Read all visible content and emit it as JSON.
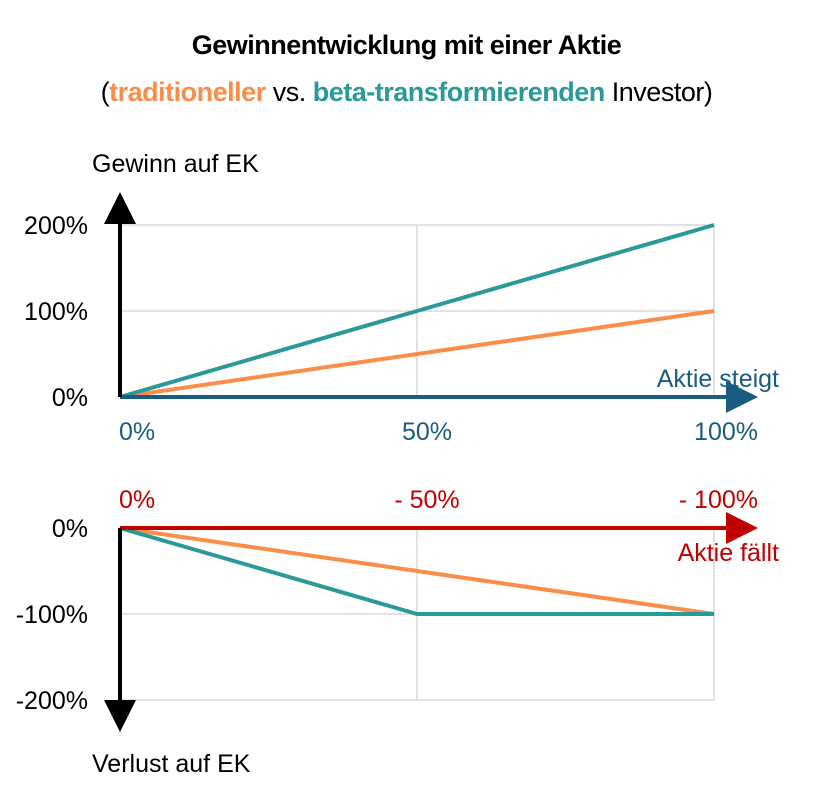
{
  "title": "Gewinnentwicklung mit einer Aktie",
  "subtitle": {
    "open": "(",
    "traditional": "traditioneller",
    "vs": " vs. ",
    "beta": "beta-transformierenden",
    "rest": " Investor)"
  },
  "colors": {
    "traditional": "#f98e4a",
    "beta": "#2a9a98",
    "rise_axis": "#1a5c80",
    "fall_axis": "#c00000",
    "grid": "#d9d9d9"
  },
  "chart_data": [
    {
      "type": "line",
      "title": "Aktie steigt",
      "ylabel": "Gewinn auf EK",
      "xlabel": "Aktie steigt",
      "x_ticks": [
        "0%",
        "50%",
        "100%"
      ],
      "y_ticks": [
        "0%",
        "100%",
        "200%"
      ],
      "xlim": [
        0,
        100
      ],
      "ylim": [
        0,
        200
      ],
      "x": [
        0,
        50,
        100
      ],
      "series": [
        {
          "name": "traditioneller",
          "values": [
            0,
            50,
            100
          ]
        },
        {
          "name": "beta-transformierenden",
          "values": [
            0,
            100,
            200
          ]
        }
      ]
    },
    {
      "type": "line",
      "title": "Aktie fällt",
      "ylabel": "Verlust auf EK",
      "xlabel": "Aktie fällt",
      "x_ticks": [
        "0%",
        "- 50%",
        "- 100%"
      ],
      "y_ticks": [
        "0%",
        "-100%",
        "-200%"
      ],
      "xlim": [
        0,
        -100
      ],
      "ylim": [
        -200,
        0
      ],
      "x": [
        0,
        -50,
        -100
      ],
      "series": [
        {
          "name": "traditioneller",
          "values": [
            0,
            -50,
            -100
          ]
        },
        {
          "name": "beta-transformierenden",
          "values": [
            0,
            -100,
            -100
          ]
        }
      ]
    }
  ]
}
